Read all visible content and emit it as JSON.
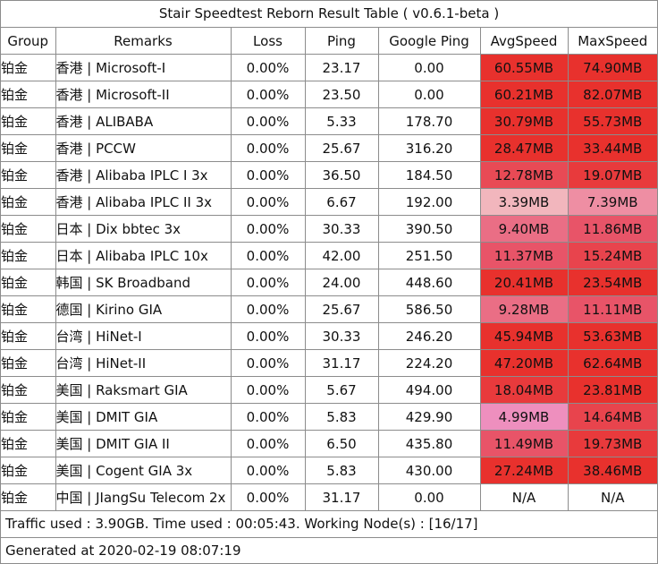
{
  "title": "Stair Speedtest Reborn Result Table ( v0.6.1-beta )",
  "columns": [
    "Group",
    "Remarks",
    "Loss",
    "Ping",
    "Google Ping",
    "AvgSpeed",
    "MaxSpeed"
  ],
  "rows": [
    {
      "group": "铂金",
      "remarks": "香港 | Microsoft-I",
      "loss": "0.00%",
      "ping": "23.17",
      "google_ping": "0.00",
      "avg_speed": "60.55MB",
      "max_speed": "74.90MB",
      "avg_color": "#e8312d",
      "max_color": "#e8312d"
    },
    {
      "group": "铂金",
      "remarks": "香港 | Microsoft-II",
      "loss": "0.00%",
      "ping": "23.50",
      "google_ping": "0.00",
      "avg_speed": "60.21MB",
      "max_speed": "82.07MB",
      "avg_color": "#e8312d",
      "max_color": "#e8312d"
    },
    {
      "group": "铂金",
      "remarks": "香港 | ALIBABA",
      "loss": "0.00%",
      "ping": "5.33",
      "google_ping": "178.70",
      "avg_speed": "30.79MB",
      "max_speed": "55.73MB",
      "avg_color": "#e8312d",
      "max_color": "#e8312d"
    },
    {
      "group": "铂金",
      "remarks": "香港 | PCCW",
      "loss": "0.00%",
      "ping": "25.67",
      "google_ping": "316.20",
      "avg_speed": "28.47MB",
      "max_speed": "33.44MB",
      "avg_color": "#e8312d",
      "max_color": "#e8312d"
    },
    {
      "group": "铂金",
      "remarks": "香港 | Alibaba IPLC I 3x",
      "loss": "0.00%",
      "ping": "36.50",
      "google_ping": "184.50",
      "avg_speed": "12.78MB",
      "max_speed": "19.07MB",
      "avg_color": "#e84a55",
      "max_color": "#e83a3c"
    },
    {
      "group": "铂金",
      "remarks": "香港 | Alibaba IPLC II 3x",
      "loss": "0.00%",
      "ping": "6.67",
      "google_ping": "192.00",
      "avg_speed": "3.39MB",
      "max_speed": "7.39MB",
      "avg_color": "#f2b6bd",
      "max_color": "#ee8ea3"
    },
    {
      "group": "铂金",
      "remarks": "日本 | Dix bbtec 3x",
      "loss": "0.00%",
      "ping": "30.33",
      "google_ping": "390.50",
      "avg_speed": "9.40MB",
      "max_speed": "11.86MB",
      "avg_color": "#ea6e85",
      "max_color": "#e85468"
    },
    {
      "group": "铂金",
      "remarks": "日本 | Alibaba IPLC 10x",
      "loss": "0.00%",
      "ping": "42.00",
      "google_ping": "251.50",
      "avg_speed": "11.37MB",
      "max_speed": "15.24MB",
      "avg_color": "#e85468",
      "max_color": "#e8444d"
    },
    {
      "group": "铂金",
      "remarks": "韩国 |  SK Broadband",
      "loss": "0.00%",
      "ping": "24.00",
      "google_ping": "448.60",
      "avg_speed": "20.41MB",
      "max_speed": "23.54MB",
      "avg_color": "#e8312d",
      "max_color": "#e8312d"
    },
    {
      "group": "铂金",
      "remarks": "德国 | Kirino GIA",
      "loss": "0.00%",
      "ping": "25.67",
      "google_ping": "586.50",
      "avg_speed": "9.28MB",
      "max_speed": "11.11MB",
      "avg_color": "#ea6e85",
      "max_color": "#e85468"
    },
    {
      "group": "铂金",
      "remarks": "台湾 | HiNet-I",
      "loss": "0.00%",
      "ping": "30.33",
      "google_ping": "246.20",
      "avg_speed": "45.94MB",
      "max_speed": "53.63MB",
      "avg_color": "#e8312d",
      "max_color": "#e8312d"
    },
    {
      "group": "铂金",
      "remarks": "台湾 | HiNet-II",
      "loss": "0.00%",
      "ping": "31.17",
      "google_ping": "224.20",
      "avg_speed": "47.20MB",
      "max_speed": "62.64MB",
      "avg_color": "#e8312d",
      "max_color": "#e8312d"
    },
    {
      "group": "铂金",
      "remarks": "美国 | Raksmart GIA",
      "loss": "0.00%",
      "ping": "5.67",
      "google_ping": "494.00",
      "avg_speed": "18.04MB",
      "max_speed": "23.81MB",
      "avg_color": "#e83a3c",
      "max_color": "#e8312d"
    },
    {
      "group": "铂金",
      "remarks": "美国 | DMIT GIA",
      "loss": "0.00%",
      "ping": "5.83",
      "google_ping": "429.90",
      "avg_speed": "4.99MB",
      "max_speed": "14.64MB",
      "avg_color": "#ee8fbe",
      "max_color": "#e8444d"
    },
    {
      "group": "铂金",
      "remarks": "美国 | DMIT GIA II",
      "loss": "0.00%",
      "ping": "6.50",
      "google_ping": "435.80",
      "avg_speed": "11.49MB",
      "max_speed": "19.73MB",
      "avg_color": "#e85468",
      "max_color": "#e83a3c"
    },
    {
      "group": "铂金",
      "remarks": "美国 | Cogent GIA 3x",
      "loss": "0.00%",
      "ping": "5.83",
      "google_ping": "430.00",
      "avg_speed": "27.24MB",
      "max_speed": "38.46MB",
      "avg_color": "#e8312d",
      "max_color": "#e8312d"
    },
    {
      "group": "铂金",
      "remarks": "中国 | JIangSu Telecom 2x",
      "loss": "0.00%",
      "ping": "31.17",
      "google_ping": "0.00",
      "avg_speed": "N/A",
      "max_speed": "N/A",
      "avg_color": "#ffffff",
      "max_color": "#ffffff"
    }
  ],
  "footer": {
    "traffic": "Traffic used : 3.90GB. Time used : 00:05:43. Working Node(s) : [16/17]",
    "generated": "Generated at 2020-02-19 08:07:19"
  }
}
